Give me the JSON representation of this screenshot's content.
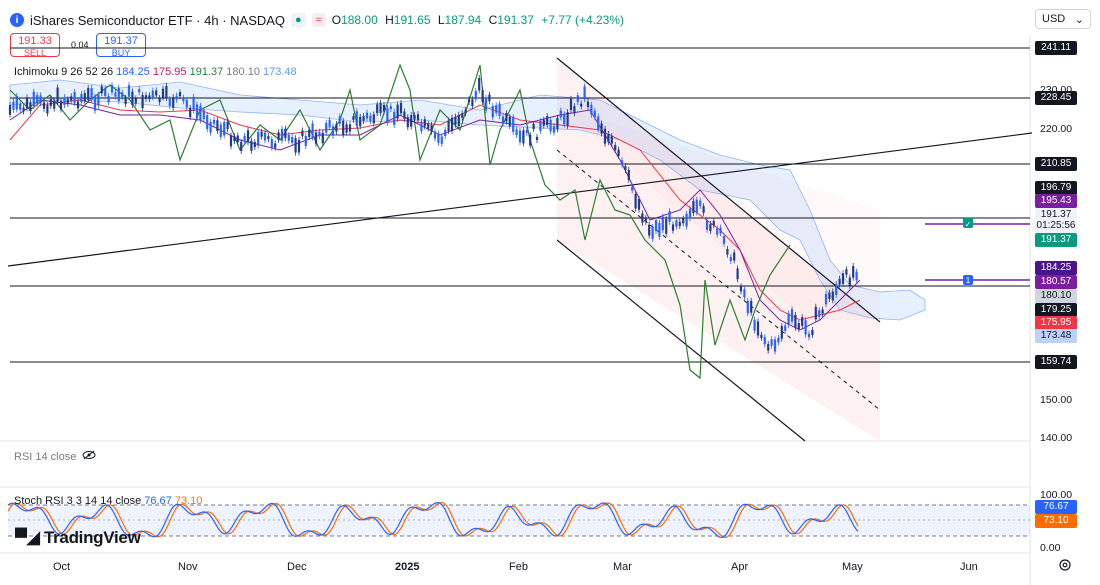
{
  "header": {
    "symbol_icon": "info-letter-icon",
    "logo_letter": "i",
    "title": "iShares Semiconductor ETF · 4h · NASDAQ",
    "open_label": "O",
    "open": "188.00",
    "high_label": "H",
    "high": "191.65",
    "low_label": "L",
    "low": "187.94",
    "close_label": "C",
    "close": "191.37",
    "change": "+7.77 (+4.23%)",
    "currency": "USD"
  },
  "trade": {
    "sell_price": "191.33",
    "sell_label": "SELL",
    "spread": "0.04",
    "buy_price": "191.37",
    "buy_label": "BUY"
  },
  "indicators": {
    "ichimoku": {
      "name": "Ichimoku 9 26 52 26",
      "v1": "184.25",
      "v2": "175.95",
      "v3": "191.37",
      "v4": "180.10",
      "v5": "173.48"
    },
    "rsi": {
      "name": "RSI 14 close"
    },
    "stoch": {
      "name": "Stoch RSI 3 3 14 14 close",
      "k": "76.67",
      "d": "73.10"
    }
  },
  "price_axis": [
    "230.00",
    "220.00",
    "150.00",
    "140.00"
  ],
  "price_labels": [
    {
      "text": "241.11",
      "bg": "#131722"
    },
    {
      "text": "228.45",
      "bg": "#131722"
    },
    {
      "text": "210.85",
      "bg": "#131722"
    },
    {
      "text": "196.79",
      "bg": "#131722"
    },
    {
      "text": "195.43",
      "bg": "#7b1fa2"
    },
    {
      "text": "191.37",
      "bg": "#f0f3fa"
    },
    {
      "text": "01:25:56",
      "bg": "#f0f3fa"
    },
    {
      "text": "191.37",
      "bg": "#089981"
    },
    {
      "text": "184.25",
      "bg": "#4a148c"
    },
    {
      "text": "180.57",
      "bg": "#7b1fa2"
    },
    {
      "text": "180.10",
      "bg": "#d1d4dc"
    },
    {
      "text": "179.25",
      "bg": "#131722"
    },
    {
      "text": "175.95",
      "bg": "#f23645"
    },
    {
      "text": "173.48",
      "bg": "#bbd3fa"
    },
    {
      "text": "159.74",
      "bg": "#131722"
    }
  ],
  "stoch_axis": [
    "100.00",
    "0.00"
  ],
  "stoch_labels": [
    {
      "text": "76.67",
      "bg": "#2962ff"
    },
    {
      "text": "73.10",
      "bg": "#ff6d00"
    }
  ],
  "time_axis": [
    "Oct",
    "Nov",
    "Dec",
    "2025",
    "Feb",
    "Mar",
    "Apr",
    "May",
    "Jun"
  ],
  "alerts": [
    "✓",
    "1"
  ],
  "brand": "TradingView",
  "colors": {
    "up": "#089981",
    "down": "#f23645",
    "blue_candle": "#2962ff",
    "lagging": "#2e7d32",
    "base": "#f23645",
    "conv": "#7b1fa2"
  }
}
